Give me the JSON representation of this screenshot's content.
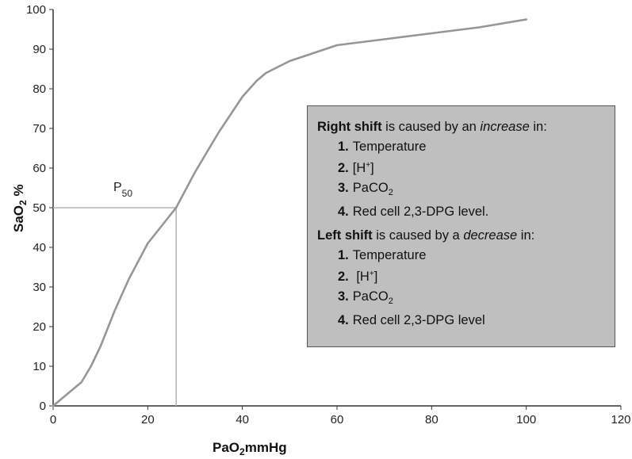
{
  "chart_data": {
    "type": "line",
    "xlabel": "PaO2 mmHg",
    "ylabel": "SaO2 %",
    "xlim": [
      0,
      120
    ],
    "ylim": [
      0,
      100
    ],
    "x_ticks": [
      "0",
      "20",
      "40",
      "60",
      "80",
      "100",
      "120"
    ],
    "y_ticks": [
      "0",
      "10",
      "20",
      "30",
      "40",
      "50",
      "60",
      "70",
      "80",
      "90",
      "100"
    ],
    "grid": false,
    "series": [
      {
        "color": "#969696",
        "x": [
          0,
          3,
          6,
          8,
          10,
          13,
          16,
          20,
          26,
          30,
          35,
          40,
          43,
          45,
          50,
          55,
          60,
          70,
          80,
          90,
          100
        ],
        "y": [
          0,
          3,
          6,
          10,
          15,
          24,
          32,
          41,
          50,
          59,
          69,
          78,
          82,
          84,
          87,
          89,
          91,
          92.5,
          94,
          95.5,
          97.5
        ]
      }
    ],
    "annotations": {
      "p50_label": "P",
      "p50_sub": "50",
      "p50_x": 26,
      "p50_y": 50
    }
  },
  "axis_title": {
    "y_main": "SaO",
    "y_sub": "2",
    "y_unit": " %",
    "x_main": "PaO",
    "x_sub": "2",
    "x_unit": "mmHg"
  },
  "info_box": {
    "right": {
      "bold": "Right shift",
      "mid": " is caused by an ",
      "italic": "increase",
      "end": " in:",
      "items": [
        {
          "num": "1.",
          "text": "Temperature"
        },
        {
          "num": "2.",
          "pre": "[H",
          "sup": "+",
          "post": "]"
        },
        {
          "num": "3.",
          "pre": "PaCO",
          "sub": "2"
        },
        {
          "num": "4.",
          "text": "Red cell 2,3-DPG level."
        }
      ]
    },
    "left": {
      "bold": "Left shift",
      "mid": " is caused by a ",
      "italic": "decrease",
      "end": " in:",
      "items": [
        {
          "num": "1.",
          "text": "Temperature"
        },
        {
          "num": "2.",
          "pre": " [H",
          "sup": "+",
          "post": "]"
        },
        {
          "num": "3.",
          "pre": "PaCO",
          "sub": "2"
        },
        {
          "num": "4.",
          "text": "Red cell 2,3-DPG level"
        }
      ]
    }
  }
}
